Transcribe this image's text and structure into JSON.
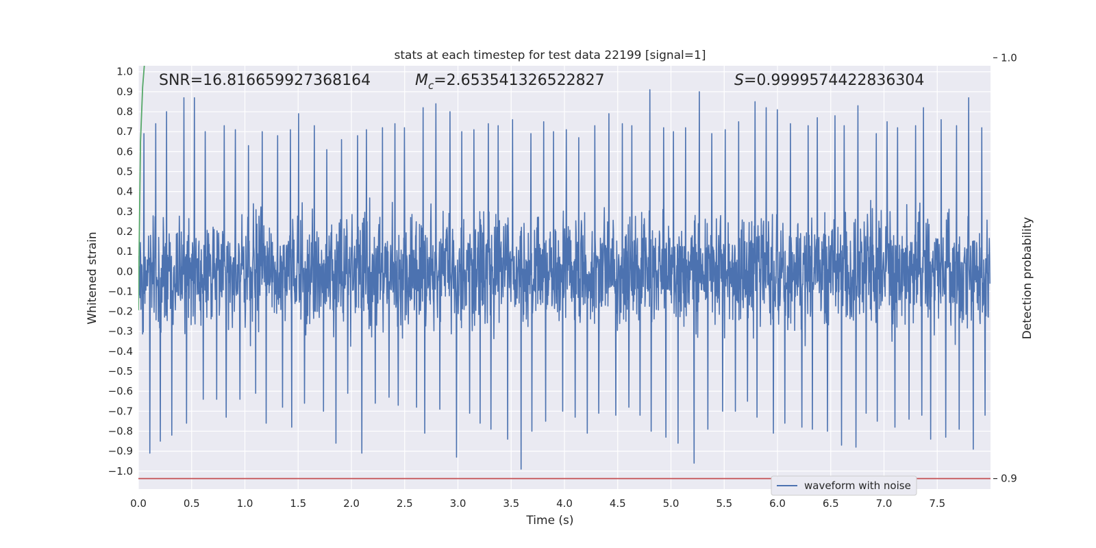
{
  "chart_data": {
    "type": "line",
    "title": "stats at each timestep for test data 22199 [signal=1]",
    "xlabel": "Time (s)",
    "ylabel": "Whitened strain",
    "y2label": "Detection probability",
    "xlim": [
      0.0,
      8.0
    ],
    "ylim": [
      -1.09,
      1.03
    ],
    "y2lim": [
      0.8975,
      0.9981
    ],
    "x_ticks": [
      0.0,
      0.5,
      1.0,
      1.5,
      2.0,
      2.5,
      3.0,
      3.5,
      4.0,
      4.5,
      5.0,
      5.5,
      6.0,
      6.5,
      7.0,
      7.5
    ],
    "x_tick_labels": [
      "0.0",
      "0.5",
      "1.0",
      "1.5",
      "2.0",
      "2.5",
      "3.0",
      "3.5",
      "4.0",
      "4.5",
      "5.0",
      "5.5",
      "6.0",
      "6.5",
      "7.0",
      "7.5"
    ],
    "y_ticks": [
      1.0,
      0.9,
      0.8,
      0.7,
      0.6,
      0.5,
      0.4,
      0.3,
      0.2,
      0.1,
      0.0,
      -0.1,
      -0.2,
      -0.3,
      -0.4,
      -0.5,
      -0.6,
      -0.7,
      -0.8,
      -0.9,
      -1.0
    ],
    "y_tick_labels": [
      "1.0",
      "0.9",
      "0.8",
      "0.7",
      "0.6",
      "0.5",
      "0.4",
      "0.3",
      "0.2",
      "0.1",
      "0.0",
      "−0.1",
      "−0.2",
      "−0.3",
      "−0.4",
      "−0.5",
      "−0.6",
      "−0.7",
      "−0.8",
      "−0.9",
      "−1.0"
    ],
    "y2_ticks": [
      1.0,
      0.9
    ],
    "y2_tick_labels": [
      "1.0",
      "0.9"
    ],
    "grid": true,
    "legend_position": "lower-right",
    "annotations": {
      "snr": "SNR=16.816659927368164",
      "mc_symbol": "M",
      "mc_sub": "c",
      "mc_value": "=2.653541326522827",
      "s_symbol": "S",
      "s_value": "=0.9999574422836304"
    },
    "series": [
      {
        "name": "waveform with noise",
        "color": "#4c72b0",
        "x_range": [
          0.0,
          7.995
        ],
        "envelope_max": [
          0.69,
          0.74,
          0.8,
          0.87,
          0.87,
          0.7,
          0.73,
          0.71,
          0.63,
          0.7,
          0.68,
          0.71,
          0.79,
          0.73,
          0.61,
          0.66,
          0.68,
          0.71,
          0.72,
          0.74,
          0.72,
          0.82,
          0.84,
          0.8,
          0.7,
          0.71,
          0.74,
          0.73,
          0.76,
          0.69,
          0.75,
          0.7,
          0.71,
          0.67,
          0.73,
          0.79,
          0.74,
          0.73,
          0.91,
          0.72,
          0.7,
          0.72,
          0.9,
          0.69,
          0.71,
          0.75,
          0.85,
          0.82,
          0.81,
          0.74,
          0.73,
          0.77,
          0.78,
          0.73,
          0.83,
          0.69,
          0.75,
          0.72,
          0.73,
          0.82,
          0.76,
          0.73,
          0.87,
          0.72
        ],
        "envelope_min": [
          -0.91,
          -0.85,
          -0.82,
          -0.76,
          -0.64,
          -0.64,
          -0.73,
          -0.64,
          -0.61,
          -0.76,
          -0.68,
          -0.78,
          -0.66,
          -0.7,
          -0.86,
          -0.61,
          -0.91,
          -0.66,
          -0.63,
          -0.67,
          -0.68,
          -0.81,
          -0.69,
          -0.93,
          -0.71,
          -0.76,
          -0.79,
          -0.84,
          -0.99,
          -0.8,
          -0.75,
          -0.7,
          -0.73,
          -0.81,
          -0.71,
          -0.72,
          -0.68,
          -0.72,
          -0.8,
          -0.83,
          -0.86,
          -0.96,
          -0.79,
          -0.7,
          -0.7,
          -0.65,
          -0.73,
          -0.81,
          -0.76,
          -0.78,
          -0.79,
          -0.8,
          -0.87,
          -0.88,
          -0.71,
          -0.75,
          -0.78,
          -0.74,
          -0.72,
          -0.84,
          -0.83,
          -0.79,
          -0.89,
          -0.72
        ],
        "typical_amplitude": 0.35
      },
      {
        "color": "#55a868",
        "axis": "right",
        "x": [
          0.0,
          0.02,
          0.04,
          0.06,
          0.1,
          7.95
        ],
        "y": [
          0.94,
          0.98,
          0.993,
          0.9995,
          0.99996,
          0.99996
        ]
      },
      {
        "color": "#c44e52",
        "axis": "right",
        "x": [
          0.0,
          8.0
        ],
        "y": [
          0.9,
          0.9
        ]
      }
    ]
  }
}
